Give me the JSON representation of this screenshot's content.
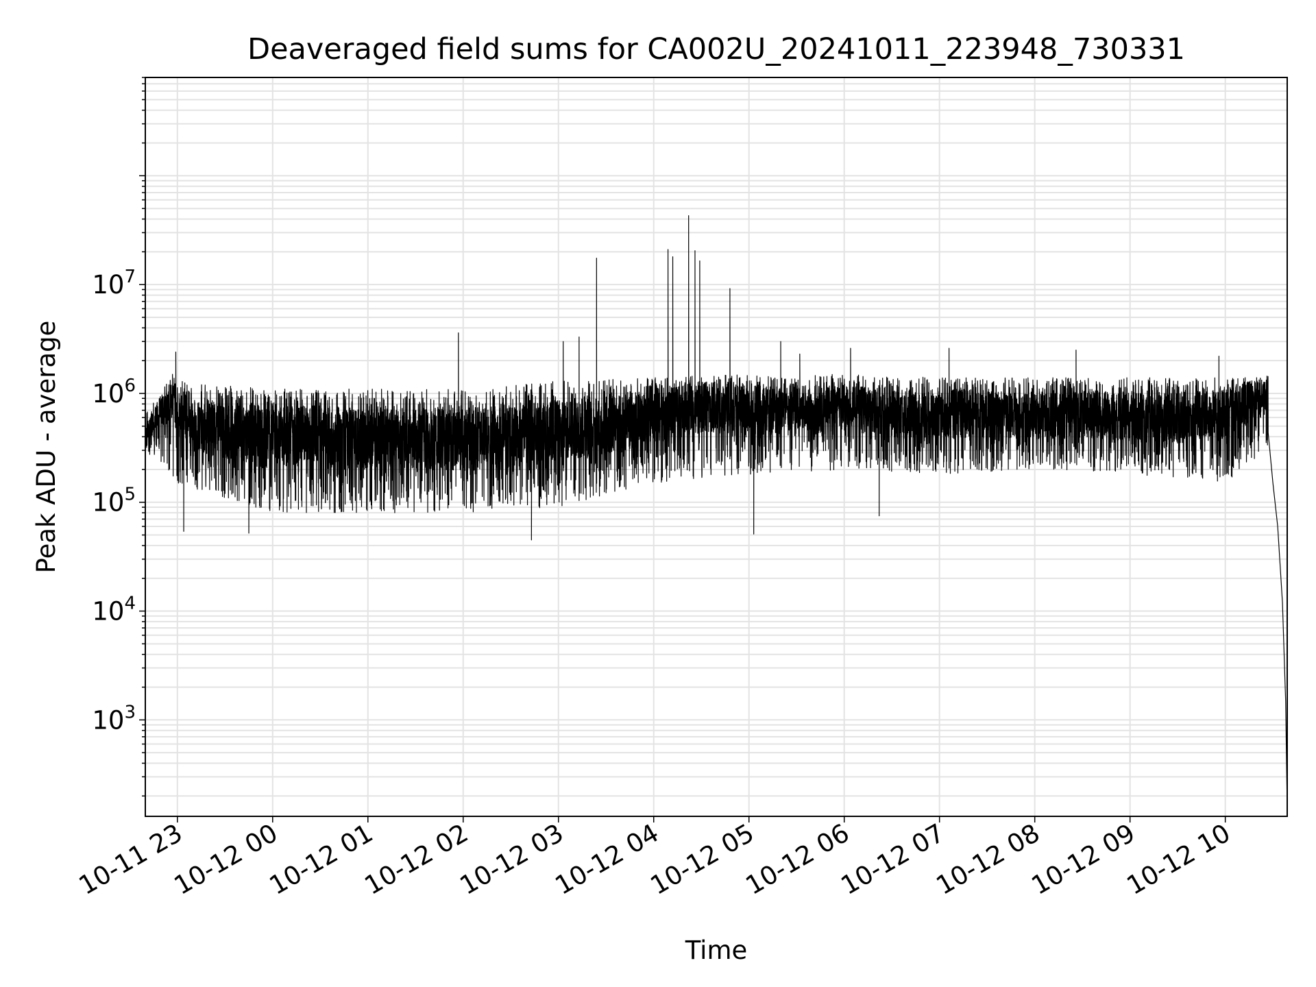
{
  "chart_data": {
    "type": "line",
    "title": "Deaveraged field sums for CA002U_20241011_223948_730331",
    "xlabel": "Time",
    "ylabel": "Peak ADU - average",
    "yscale": "log",
    "ylim": [
      130,
      800000000
    ],
    "xlim": [
      "2024-10-11 22:39:48",
      "2024-10-12 10:39:00"
    ],
    "grid": true,
    "x_ticks": [
      "10-11 23",
      "10-12 00",
      "10-12 01",
      "10-12 02",
      "10-12 03",
      "10-12 04",
      "10-12 05",
      "10-12 06",
      "10-12 07",
      "10-12 08",
      "10-12 09",
      "10-12 10"
    ],
    "y_ticks": [
      {
        "base": "10",
        "exp": "3"
      },
      {
        "base": "10",
        "exp": "4"
      },
      {
        "base": "10",
        "exp": "5"
      },
      {
        "base": "10",
        "exp": "6"
      },
      {
        "base": "10",
        "exp": "7"
      }
    ],
    "line_color": "#000000",
    "grid_color": "#e3e3e3",
    "series": [
      {
        "values_description_points": [
          [
            "2024-10-11 22:40:00",
            400000
          ],
          [
            "2024-10-11 22:50:00",
            700000
          ],
          [
            "2024-10-11 22:58:00",
            1000000
          ],
          [
            "2024-10-11 23:00:00",
            600000
          ],
          [
            "2024-10-11 23:30:00",
            450000
          ],
          [
            "2024-10-12 00:00:00",
            420000
          ],
          [
            "2024-10-12 00:30:00",
            400000
          ],
          [
            "2024-10-12 01:00:00",
            380000
          ],
          [
            "2024-10-12 01:30:00",
            380000
          ],
          [
            "2024-10-12 02:00:00",
            380000
          ],
          [
            "2024-10-12 02:30:00",
            400000
          ],
          [
            "2024-10-12 03:00:00",
            450000
          ],
          [
            "2024-10-12 03:30:00",
            500000
          ],
          [
            "2024-10-12 04:00:00",
            600000
          ],
          [
            "2024-10-12 04:30:00",
            750000
          ],
          [
            "2024-10-12 05:00:00",
            700000
          ],
          [
            "2024-10-12 05:30:00",
            700000
          ],
          [
            "2024-10-12 06:00:00",
            750000
          ],
          [
            "2024-10-12 06:30:00",
            650000
          ],
          [
            "2024-10-12 07:00:00",
            650000
          ],
          [
            "2024-10-12 07:30:00",
            650000
          ],
          [
            "2024-10-12 08:00:00",
            600000
          ],
          [
            "2024-10-12 08:30:00",
            650000
          ],
          [
            "2024-10-12 09:00:00",
            600000
          ],
          [
            "2024-10-12 09:30:00",
            600000
          ],
          [
            "2024-10-12 10:00:00",
            650000
          ],
          [
            "2024-10-12 10:20:00",
            900000
          ],
          [
            "2024-10-12 10:27:00",
            1000000
          ],
          [
            "2024-10-12 10:30:00",
            150000
          ],
          [
            "2024-10-12 10:33:00",
            60000
          ],
          [
            "2024-10-12 10:36:00",
            12000
          ],
          [
            "2024-10-12 10:38:00",
            1500
          ],
          [
            "2024-10-12 10:39:00",
            150
          ]
        ],
        "lower_envelope": [
          [
            "2024-10-11 22:40:00",
            300000
          ],
          [
            "2024-10-11 23:00:00",
            150000
          ],
          [
            "2024-10-12 00:00:00",
            80000
          ],
          [
            "2024-10-12 01:00:00",
            80000
          ],
          [
            "2024-10-12 02:00:00",
            80000
          ],
          [
            "2024-10-12 03:00:00",
            90000
          ],
          [
            "2024-10-12 04:00:00",
            150000
          ],
          [
            "2024-10-12 05:00:00",
            180000
          ],
          [
            "2024-10-12 06:00:00",
            200000
          ],
          [
            "2024-10-12 07:00:00",
            180000
          ],
          [
            "2024-10-12 08:00:00",
            200000
          ],
          [
            "2024-10-12 09:00:00",
            180000
          ],
          [
            "2024-10-12 10:00:00",
            150000
          ],
          [
            "2024-10-12 10:25:00",
            300000
          ]
        ],
        "upper_envelope": [
          [
            "2024-10-11 22:40:00",
            700000
          ],
          [
            "2024-10-11 23:00:00",
            1300000
          ],
          [
            "2024-10-12 00:00:00",
            1100000
          ],
          [
            "2024-10-12 01:00:00",
            1100000
          ],
          [
            "2024-10-12 02:00:00",
            1100000
          ],
          [
            "2024-10-12 03:00:00",
            1300000
          ],
          [
            "2024-10-12 04:00:00",
            1400000
          ],
          [
            "2024-10-12 05:00:00",
            1500000
          ],
          [
            "2024-10-12 06:00:00",
            1500000
          ],
          [
            "2024-10-12 07:00:00",
            1400000
          ],
          [
            "2024-10-12 08:00:00",
            1400000
          ],
          [
            "2024-10-12 09:00:00",
            1400000
          ],
          [
            "2024-10-12 10:00:00",
            1400000
          ],
          [
            "2024-10-12 10:25:00",
            1400000
          ]
        ],
        "spikes": [
          [
            "2024-10-11 22:59:00",
            2400000
          ],
          [
            "2024-10-11 23:04:00",
            54000
          ],
          [
            "2024-10-11 23:45:00",
            52000
          ],
          [
            "2024-10-12 01:57:00",
            3600000
          ],
          [
            "2024-10-12 02:43:00",
            45000
          ],
          [
            "2024-10-12 03:03:00",
            3000000
          ],
          [
            "2024-10-12 03:13:00",
            3300000
          ],
          [
            "2024-10-12 03:24:00",
            17500000
          ],
          [
            "2024-10-12 04:09:00",
            21000000
          ],
          [
            "2024-10-12 04:12:00",
            18000000
          ],
          [
            "2024-10-12 04:22:00",
            43000000
          ],
          [
            "2024-10-12 04:26:00",
            20500000
          ],
          [
            "2024-10-12 04:29:00",
            16500000
          ],
          [
            "2024-10-12 04:48:00",
            9200000
          ],
          [
            "2024-10-12 05:03:00",
            51000
          ],
          [
            "2024-10-12 05:20:00",
            3000000
          ],
          [
            "2024-10-12 05:32:00",
            2300000
          ],
          [
            "2024-10-12 06:04:00",
            2600000
          ],
          [
            "2024-10-12 06:22:00",
            75000
          ],
          [
            "2024-10-12 07:06:00",
            2600000
          ],
          [
            "2024-10-12 08:26:00",
            2500000
          ],
          [
            "2024-10-12 09:56:00",
            2200000
          ]
        ]
      }
    ]
  }
}
